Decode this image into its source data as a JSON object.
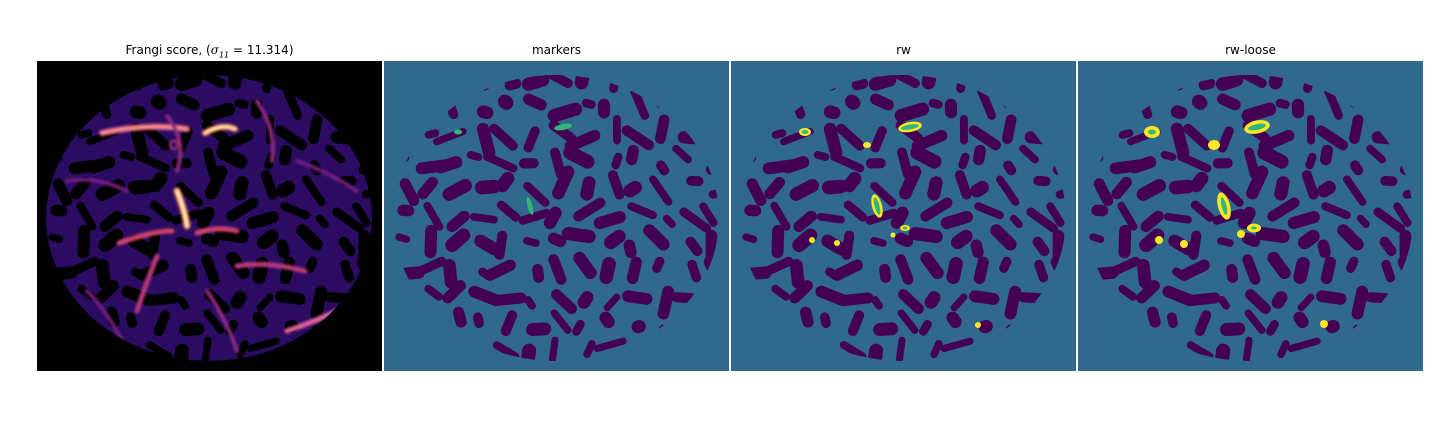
{
  "panels": [
    {
      "title_prefix": "Frangi score, (",
      "title_symbol": "σ",
      "title_subscript": "11",
      "title_suffix": " = 11.314)",
      "colormap": "magma",
      "background_color": "#000000"
    },
    {
      "title": "markers",
      "background_color": "#31688e"
    },
    {
      "title": "rw",
      "background_color": "#31688e"
    },
    {
      "title": "rw-loose",
      "background_color": "#31688e"
    }
  ],
  "colors": {
    "blob_dark": "#440154",
    "marker_green": "#35b779",
    "label_yellow": "#fde725",
    "frangi_low": "#3b0f70",
    "frangi_mid": "#b73779",
    "frangi_high": "#fcfdbf"
  }
}
